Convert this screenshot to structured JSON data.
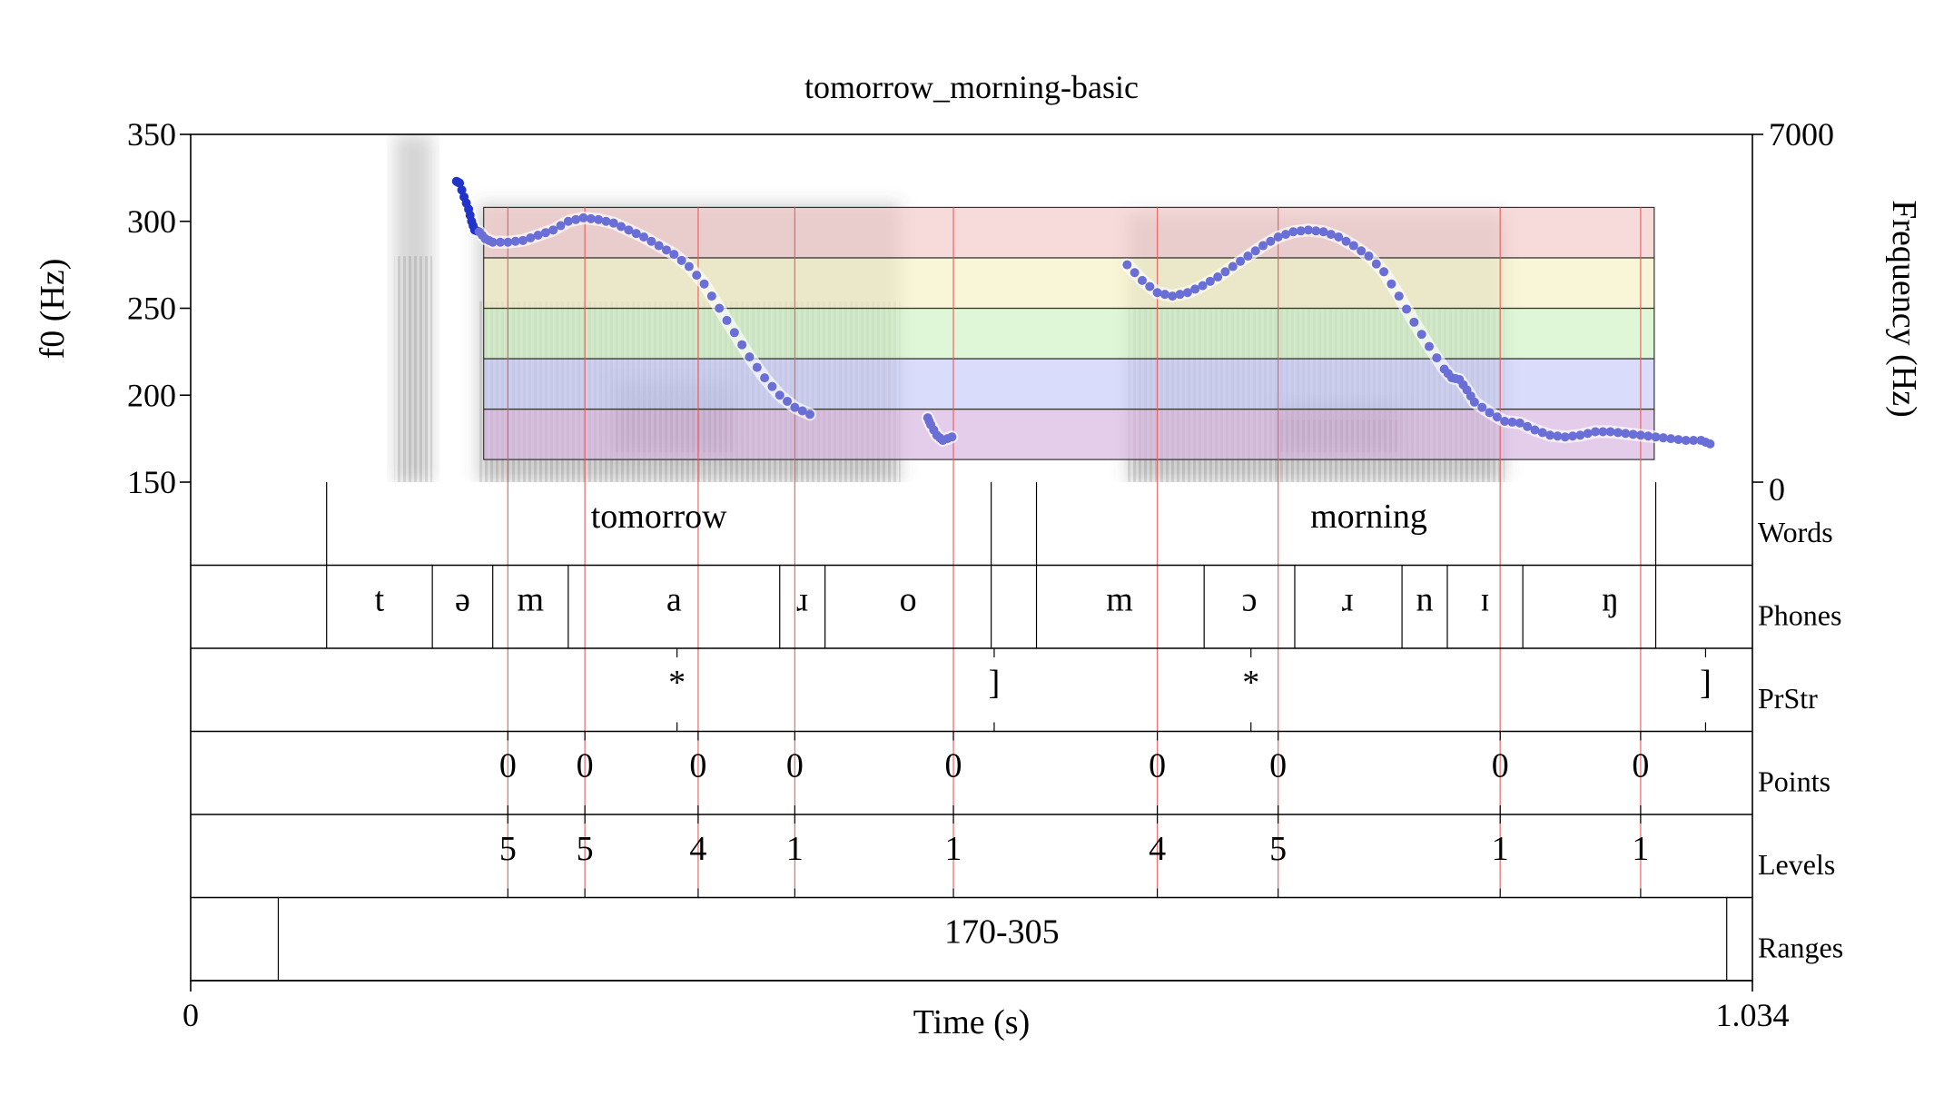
{
  "title": "tomorrow_morning-basic",
  "chart_data": {
    "type": "line",
    "title": "tomorrow_morning-basic",
    "xlabel": "Time (s)",
    "ylabel_left": "f0 (Hz)",
    "ylabel_right": "Frequency (Hz)",
    "xlim": [
      0,
      1.034
    ],
    "ylim_left": [
      150,
      350
    ],
    "ylim_right": [
      0,
      7000
    ],
    "x_ticks": [
      "0",
      "1.034"
    ],
    "y_ticks_left": [
      150,
      200,
      250,
      300,
      350
    ],
    "y_ticks_left_labels": [
      "150",
      "200",
      "250",
      "300",
      "350"
    ],
    "y_ticks_right_labels": [
      "0",
      "7000"
    ],
    "range_bands": {
      "x_start": 0.194,
      "x_end": 0.969,
      "edges_hz": [
        163,
        192,
        221,
        250,
        279,
        308
      ],
      "colors": [
        "#d8b8e2",
        "#c9cdf8",
        "#d2f4c4",
        "#f6f1c6",
        "#f4cccc"
      ]
    },
    "series": [
      {
        "color": "#6a6fd8",
        "points": [
          [
            0.176,
            323
          ],
          [
            0.178,
            322
          ],
          [
            0.181,
            314
          ],
          [
            0.184,
            307
          ],
          [
            0.186,
            300
          ],
          [
            0.188,
            295
          ],
          [
            0.191,
            294
          ],
          [
            0.195,
            290
          ],
          [
            0.2,
            288
          ],
          [
            0.21,
            288
          ],
          [
            0.22,
            289
          ],
          [
            0.23,
            292
          ],
          [
            0.24,
            295
          ],
          [
            0.25,
            300
          ],
          [
            0.26,
            302
          ],
          [
            0.27,
            301
          ],
          [
            0.28,
            299
          ],
          [
            0.29,
            295
          ],
          [
            0.3,
            291
          ],
          [
            0.31,
            286
          ],
          [
            0.32,
            281
          ],
          [
            0.33,
            274
          ],
          [
            0.34,
            264
          ],
          [
            0.35,
            250
          ],
          [
            0.36,
            236
          ],
          [
            0.37,
            222
          ],
          [
            0.38,
            210
          ],
          [
            0.39,
            200
          ],
          [
            0.4,
            193
          ],
          [
            0.41,
            189
          ]
        ]
      },
      {
        "color": "#6a6fd8",
        "points": [
          [
            0.488,
            187
          ],
          [
            0.49,
            183
          ],
          [
            0.494,
            177
          ],
          [
            0.498,
            174
          ],
          [
            0.504,
            176
          ]
        ]
      },
      {
        "color": "#6a6fd8",
        "points": [
          [
            0.62,
            275
          ],
          [
            0.63,
            266
          ],
          [
            0.64,
            259
          ],
          [
            0.65,
            257
          ],
          [
            0.66,
            259
          ],
          [
            0.67,
            263
          ],
          [
            0.68,
            268
          ],
          [
            0.69,
            274
          ],
          [
            0.7,
            280
          ],
          [
            0.71,
            286
          ],
          [
            0.72,
            291
          ],
          [
            0.73,
            294
          ],
          [
            0.74,
            295
          ],
          [
            0.75,
            294
          ],
          [
            0.76,
            291
          ],
          [
            0.77,
            286
          ],
          [
            0.78,
            280
          ],
          [
            0.79,
            271
          ],
          [
            0.8,
            257
          ],
          [
            0.81,
            242
          ],
          [
            0.82,
            228
          ],
          [
            0.83,
            215
          ],
          [
            0.835,
            210
          ],
          [
            0.84,
            209
          ],
          [
            0.845,
            203
          ],
          [
            0.85,
            196
          ],
          [
            0.86,
            190
          ],
          [
            0.87,
            185
          ],
          [
            0.88,
            184
          ],
          [
            0.89,
            180
          ],
          [
            0.9,
            177
          ],
          [
            0.91,
            176
          ],
          [
            0.92,
            177
          ],
          [
            0.93,
            179
          ],
          [
            0.94,
            179
          ],
          [
            0.95,
            178
          ],
          [
            0.96,
            177
          ],
          [
            0.97,
            176
          ],
          [
            0.98,
            175
          ],
          [
            0.99,
            174
          ],
          [
            1.0,
            174
          ],
          [
            1.006,
            172
          ]
        ]
      }
    ],
    "spectrogram_blobs": [
      {
        "t0": 0.135,
        "t1": 0.16,
        "f0": 0,
        "f1": 7000,
        "intensity": 0.45
      },
      {
        "t0": 0.19,
        "t1": 0.47,
        "f0": 0,
        "f1": 5600,
        "intensity": 0.5
      },
      {
        "t0": 0.62,
        "t1": 0.87,
        "f0": 0,
        "f1": 5400,
        "intensity": 0.5
      },
      {
        "t0": 0.28,
        "t1": 0.36,
        "f0": 600,
        "f1": 2000,
        "intensity": 0.45
      },
      {
        "t0": 0.72,
        "t1": 0.8,
        "f0": 600,
        "f1": 1600,
        "intensity": 0.45
      }
    ],
    "pitch_markers": [
      0.21,
      0.261,
      0.336,
      0.4,
      0.505,
      0.64,
      0.72,
      0.867,
      0.96
    ],
    "tiers": [
      {
        "name": "Words",
        "type": "interval",
        "boundaries": [
          0.09,
          0.53,
          0.56,
          0.97
        ],
        "labels": [
          {
            "t": 0.31,
            "text": "tomorrow"
          },
          {
            "t": 0.78,
            "text": "morning"
          }
        ]
      },
      {
        "name": "Phones",
        "type": "interval",
        "boundaries": [
          0.09,
          0.16,
          0.2,
          0.25,
          0.39,
          0.42,
          0.53,
          0.56,
          0.671,
          0.731,
          0.802,
          0.832,
          0.882,
          0.97
        ],
        "labels": [
          {
            "t": 0.125,
            "text": "t"
          },
          {
            "t": 0.18,
            "text": "ə"
          },
          {
            "t": 0.225,
            "text": "m"
          },
          {
            "t": 0.32,
            "text": "a"
          },
          {
            "t": 0.405,
            "text": "ɹ"
          },
          {
            "t": 0.475,
            "text": "o"
          },
          {
            "t": 0.615,
            "text": "m"
          },
          {
            "t": 0.701,
            "text": "ɔ"
          },
          {
            "t": 0.766,
            "text": "ɹ"
          },
          {
            "t": 0.817,
            "text": "n"
          },
          {
            "t": 0.857,
            "text": "ɪ"
          },
          {
            "t": 0.94,
            "text": "ŋ"
          }
        ]
      },
      {
        "name": "PrStr",
        "type": "point",
        "points": [
          {
            "t": 0.322,
            "text": "*"
          },
          {
            "t": 0.532,
            "text": "]"
          },
          {
            "t": 0.702,
            "text": "*"
          },
          {
            "t": 1.003,
            "text": "]"
          }
        ]
      },
      {
        "name": "Points",
        "type": "point",
        "points": [
          {
            "t": 0.21,
            "text": "0"
          },
          {
            "t": 0.261,
            "text": "0"
          },
          {
            "t": 0.336,
            "text": "0"
          },
          {
            "t": 0.4,
            "text": "0"
          },
          {
            "t": 0.505,
            "text": "0"
          },
          {
            "t": 0.64,
            "text": "0"
          },
          {
            "t": 0.72,
            "text": "0"
          },
          {
            "t": 0.867,
            "text": "0"
          },
          {
            "t": 0.96,
            "text": "0"
          }
        ]
      },
      {
        "name": "Levels",
        "type": "point",
        "points": [
          {
            "t": 0.21,
            "text": "5"
          },
          {
            "t": 0.261,
            "text": "5"
          },
          {
            "t": 0.336,
            "text": "4"
          },
          {
            "t": 0.4,
            "text": "1"
          },
          {
            "t": 0.505,
            "text": "1"
          },
          {
            "t": 0.64,
            "text": "4"
          },
          {
            "t": 0.72,
            "text": "5"
          },
          {
            "t": 0.867,
            "text": "1"
          },
          {
            "t": 0.96,
            "text": "1"
          }
        ]
      },
      {
        "name": "Ranges",
        "type": "interval",
        "boundaries": [
          0.058,
          1.017
        ],
        "labels": [
          {
            "t": 0.537,
            "text": "170-305"
          }
        ]
      }
    ],
    "grid": false,
    "legend": "none"
  }
}
